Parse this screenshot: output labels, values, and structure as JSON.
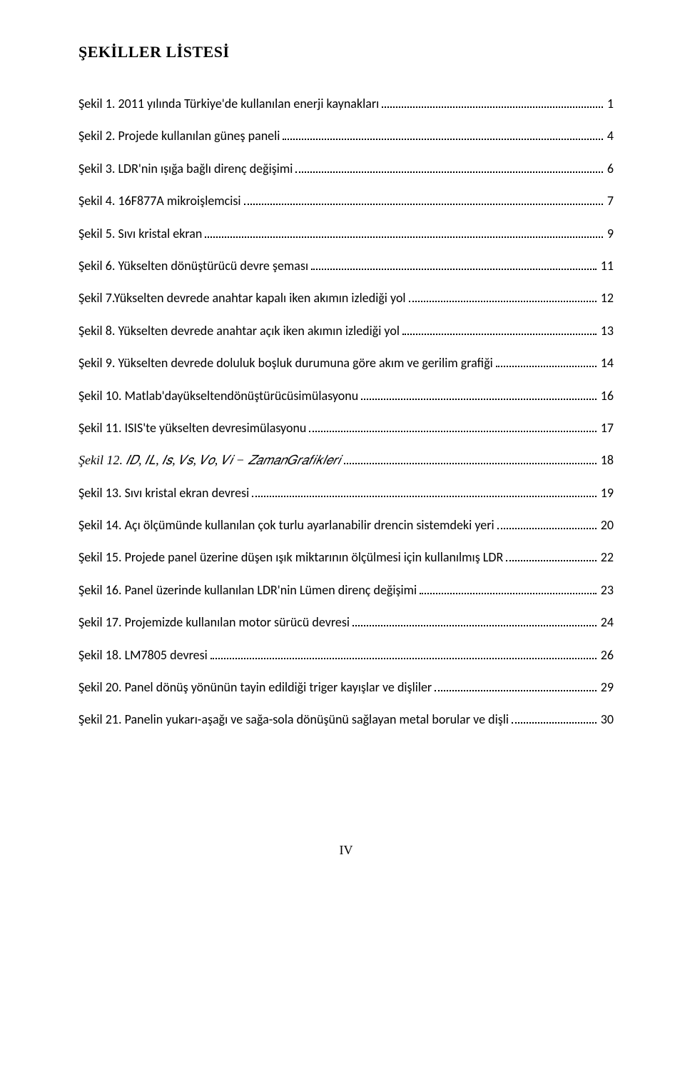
{
  "title": "ŞEKİLLER LİSTESİ",
  "footer": "IV",
  "entries": [
    {
      "label": "Şekil 1. 2011 yılında Türkiye'de kullanılan enerji kaynakları",
      "page": "1"
    },
    {
      "label": "Şekil 2. Projede kullanılan güneş paneli",
      "page": "4"
    },
    {
      "label": "Şekil 3. LDR'nin ışığa bağlı direnç değişimi",
      "page": "6"
    },
    {
      "label": "Şekil 4. 16F877A mikroişlemcisi",
      "page": "7"
    },
    {
      "label": "Şekil 5. Sıvı kristal ekran",
      "page": "9"
    },
    {
      "label": "Şekil  6. Yükselten dönüştürücü devre şeması",
      "page": "11"
    },
    {
      "label": "Şekil 7.Yükselten devrede anahtar kapalı iken akımın izlediği yol",
      "page": "12"
    },
    {
      "label": "Şekil 8. Yükselten devrede anahtar açık iken  akımın izlediği yol",
      "page": "13"
    },
    {
      "label": "Şekil 9. Yükselten devrede doluluk boşluk durumuna göre akım ve gerilim grafiği",
      "page": "14"
    },
    {
      "label": "Şekil 10. Matlab'dayükseltendönüştürücüsimülasyonu",
      "page": "16"
    },
    {
      "label": "Şekil 11. ISIS'te yükselten devresimülasyonu",
      "page": "17"
    },
    {
      "label": "Şekil 12. 𝐼𝐷, 𝐼𝐿, 𝐼𝑠, 𝑉𝑠, 𝑉𝑜, 𝑉𝑖 − 𝑍𝑎𝑚𝑎𝑛𝐺𝑟𝑎𝑓𝑖𝑘𝑙𝑒𝑟𝑖",
      "page": "18",
      "math": true
    },
    {
      "label": "Şekil 13. Sıvı kristal ekran  devresi",
      "page": "19"
    },
    {
      "label": "Şekil 14. Açı ölçümünde kullanılan çok turlu ayarlanabilir drencin sistemdeki yeri",
      "page": "20"
    },
    {
      "label": "Şekil 15. Projede panel üzerine düşen ışık miktarının ölçülmesi için kullanılmış LDR",
      "page": "22"
    },
    {
      "label": "Şekil 16. Panel üzerinde kullanılan LDR'nin Lümen direnç değişimi",
      "page": "23"
    },
    {
      "label": "Şekil 17. Projemizde kullanılan motor sürücü devresi",
      "page": "24"
    },
    {
      "label": "Şekil 18. LM7805 devresi",
      "page": "26"
    },
    {
      "label": "Şekil 20. Panel dönüş yönünün tayin edildiği triger kayışlar ve dişliler",
      "page": "29"
    },
    {
      "label": "Şekil 21. Panelin yukarı-aşağı ve sağa-sola dönüşünü sağlayan metal borular ve dişli",
      "page": "30"
    }
  ]
}
